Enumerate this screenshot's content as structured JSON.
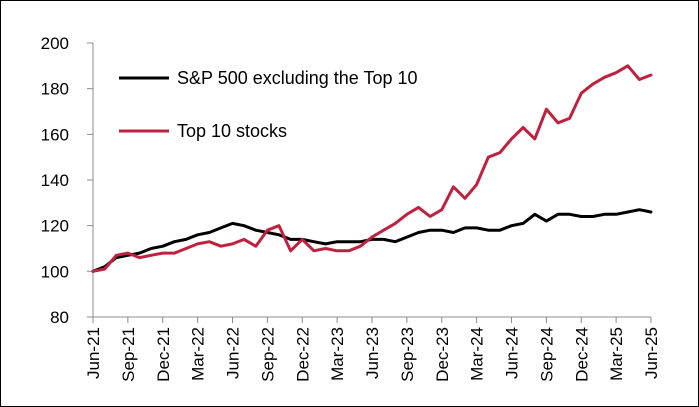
{
  "chart_data": {
    "type": "line",
    "title": "",
    "xlabel": "",
    "ylabel": "",
    "ylim": [
      80,
      200
    ],
    "yticks": [
      "80",
      "100",
      "120",
      "140",
      "160",
      "180",
      "200"
    ],
    "grid": false,
    "legend_placement": "top-left",
    "x": [
      "Jun-21",
      "Jul-21",
      "Aug-21",
      "Sep-21",
      "Oct-21",
      "Nov-21",
      "Dec-21",
      "Jan-22",
      "Feb-22",
      "Mar-22",
      "Apr-22",
      "May-22",
      "Jun-22",
      "Jul-22",
      "Aug-22",
      "Sep-22",
      "Oct-22",
      "Nov-22",
      "Dec-22",
      "Jan-23",
      "Feb-23",
      "Mar-23",
      "Apr-23",
      "May-23",
      "Jun-23",
      "Jul-23",
      "Aug-23",
      "Sep-23",
      "Oct-23",
      "Nov-23",
      "Dec-23",
      "Jan-24",
      "Feb-24",
      "Mar-24",
      "Apr-24",
      "May-24",
      "Jun-24",
      "Jul-24",
      "Aug-24",
      "Sep-24",
      "Oct-24",
      "Nov-24",
      "Dec-24",
      "Jan-25",
      "Feb-25",
      "Mar-25",
      "Apr-25",
      "May-25",
      "Jun-25"
    ],
    "xtick_labels": [
      "Jun-21",
      "Sep-21",
      "Dec-21",
      "Mar-22",
      "Jun-22",
      "Sep-22",
      "Dec-22",
      "Mar-23",
      "Jun-23",
      "Sep-23",
      "Dec-23",
      "Mar-24",
      "Jun-24",
      "Sep-24",
      "Dec-24",
      "Mar-25",
      "Jun-25"
    ],
    "series": [
      {
        "name": "S&P 500 excluding the Top 10",
        "color": "#000000",
        "values": [
          100,
          102,
          106,
          107,
          108,
          110,
          111,
          113,
          114,
          116,
          117,
          119,
          121,
          120,
          118,
          117,
          116,
          114,
          114,
          113,
          112,
          113,
          113,
          113,
          114,
          114,
          113,
          115,
          117,
          118,
          118,
          117,
          119,
          119,
          118,
          118,
          120,
          121,
          125,
          122,
          125,
          125,
          124,
          124,
          125,
          125,
          126,
          127,
          126
        ]
      },
      {
        "name": "Top 10 stocks",
        "color": "#c0213f",
        "values": [
          100,
          101,
          107,
          108,
          106,
          107,
          108,
          108,
          110,
          112,
          113,
          111,
          112,
          114,
          111,
          118,
          120,
          109,
          114,
          109,
          110,
          109,
          109,
          111,
          115,
          118,
          121,
          125,
          128,
          124,
          127,
          137,
          132,
          138,
          150,
          152,
          158,
          163,
          158,
          171,
          165,
          167,
          178,
          182,
          185,
          187,
          190,
          184,
          186
        ]
      }
    ]
  }
}
